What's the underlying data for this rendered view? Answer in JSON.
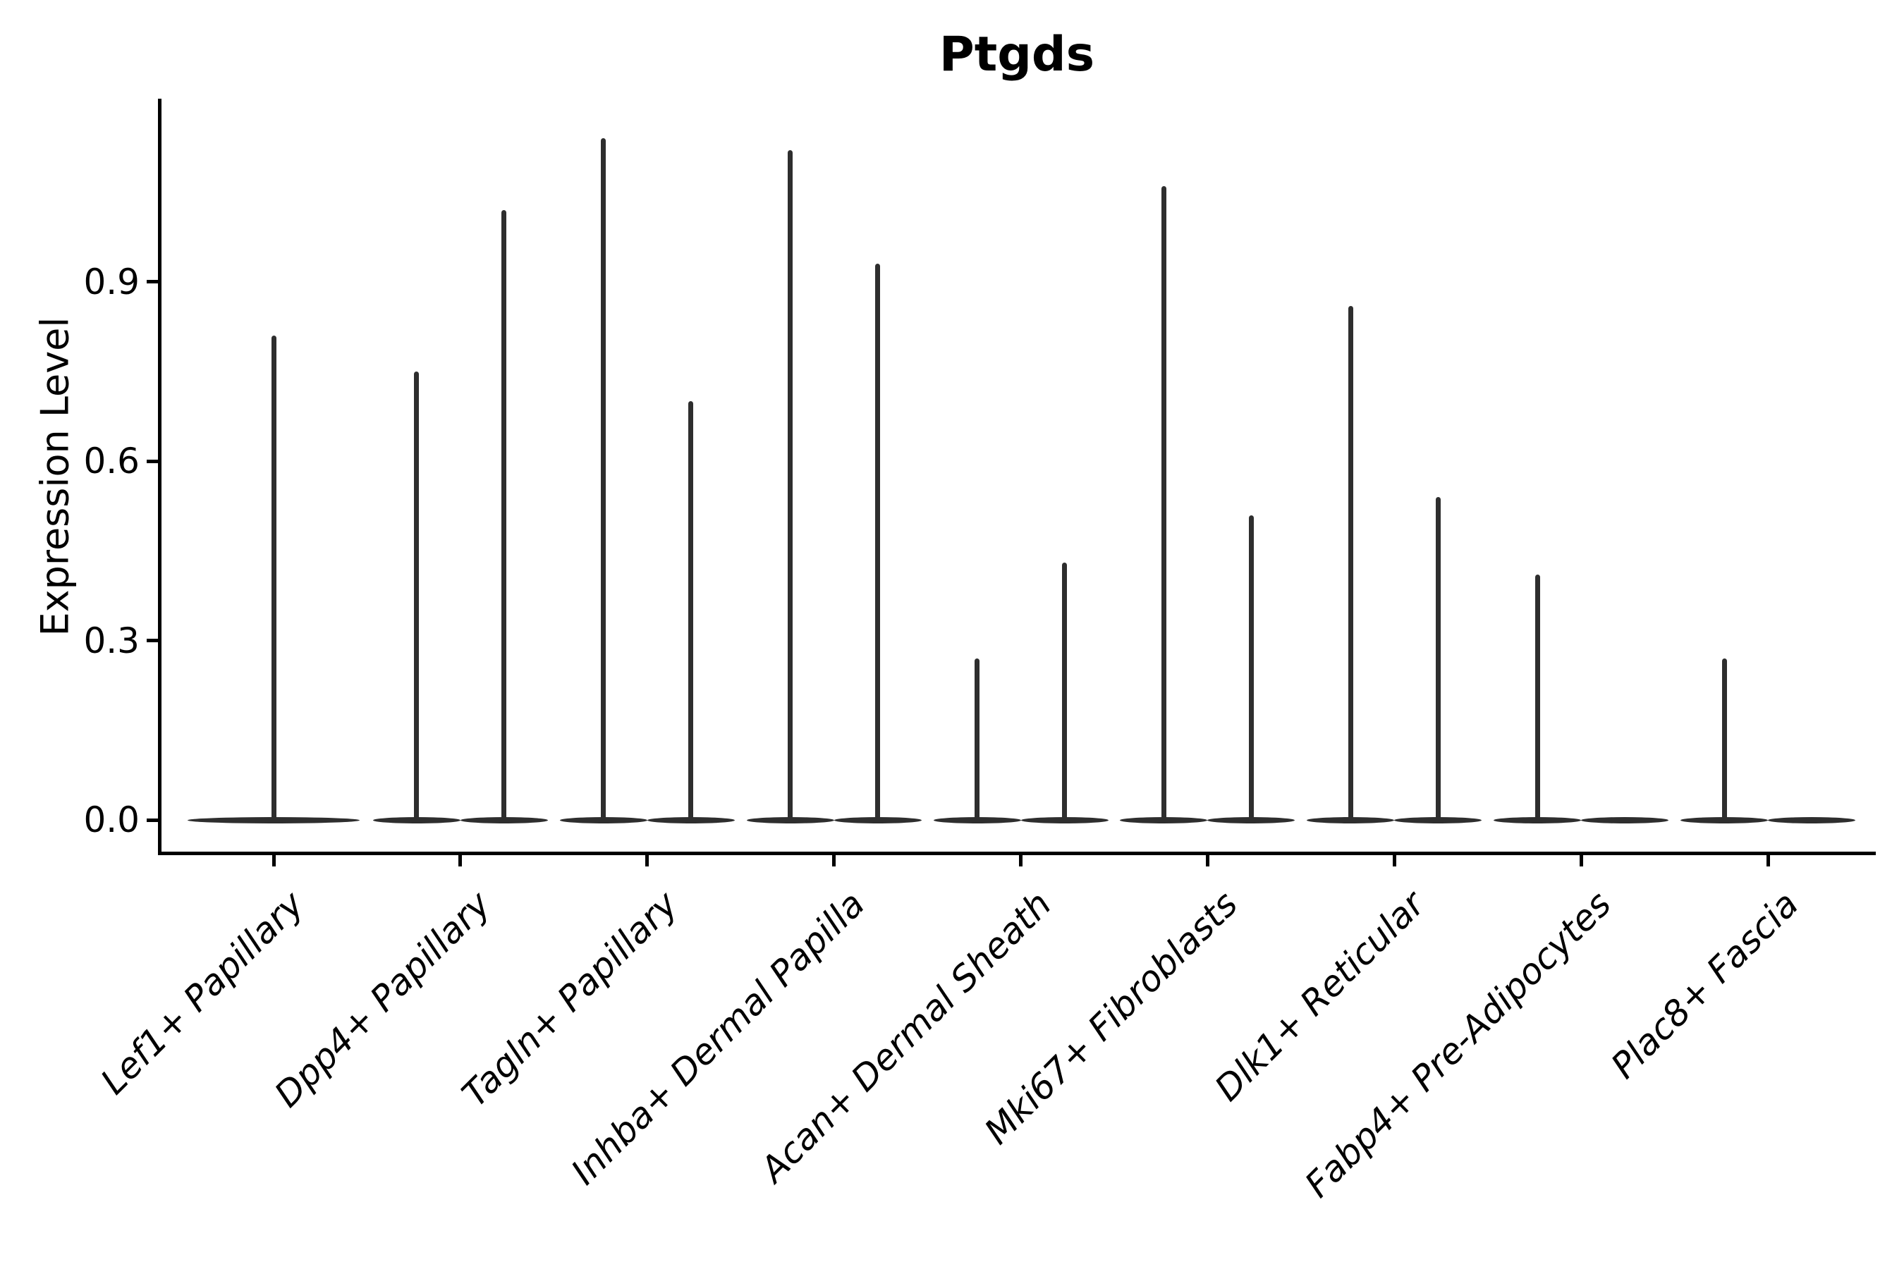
{
  "chart_data": {
    "type": "violin",
    "title": "Ptgds",
    "xlabel": "",
    "ylabel": "Expression Level",
    "ytick_values": [
      0.0,
      0.3,
      0.6,
      0.9
    ],
    "ylim": [
      -0.06,
      1.21
    ],
    "grid": false,
    "legend": null,
    "categories": [
      "Lef1+ Papillary",
      "Dpp4+ Papillary",
      "Tagln+ Papillary",
      "Inhba+ Dermal Papilla",
      "Acan+ Dermal Sheath",
      "Mki67+ Fibroblasts",
      "Dlk1+ Reticular",
      "Fabp4+ Pre-Adipocytes",
      "Plac8+ Fascia"
    ],
    "violins": [
      {
        "category": "Lef1+ Papillary",
        "slot": "center",
        "max": 0.81
      },
      {
        "category": "Dpp4+ Papillary",
        "slot": "left",
        "max": 0.75
      },
      {
        "category": "Dpp4+ Papillary",
        "slot": "right",
        "max": 1.02
      },
      {
        "category": "Tagln+ Papillary",
        "slot": "left",
        "max": 1.14
      },
      {
        "category": "Tagln+ Papillary",
        "slot": "right",
        "max": 0.7
      },
      {
        "category": "Inhba+ Dermal Papilla",
        "slot": "left",
        "max": 1.12
      },
      {
        "category": "Inhba+ Dermal Papilla",
        "slot": "right",
        "max": 0.93
      },
      {
        "category": "Acan+ Dermal Sheath",
        "slot": "left",
        "max": 0.27
      },
      {
        "category": "Acan+ Dermal Sheath",
        "slot": "right",
        "max": 0.43
      },
      {
        "category": "Mki67+ Fibroblasts",
        "slot": "left",
        "max": 1.06
      },
      {
        "category": "Mki67+ Fibroblasts",
        "slot": "right",
        "max": 0.51
      },
      {
        "category": "Dlk1+ Reticular",
        "slot": "left",
        "max": 0.86
      },
      {
        "category": "Dlk1+ Reticular",
        "slot": "right",
        "max": 0.54
      },
      {
        "category": "Fabp4+ Pre-Adipocytes",
        "slot": "left",
        "max": 0.41
      },
      {
        "category": "Fabp4+ Pre-Adipocytes",
        "slot": "right",
        "max": 0.0
      },
      {
        "category": "Plac8+ Fascia",
        "slot": "left",
        "max": 0.27
      },
      {
        "category": "Plac8+ Fascia",
        "slot": "right",
        "max": 0.0
      }
    ],
    "note": "Each violin collapses to a flat band at expression 0 with a thin density spike rising to its maximum value.",
    "colors": {
      "violin": "#2e2e2e",
      "text": "#000000",
      "spine": "#000000",
      "background": "#ffffff"
    }
  }
}
